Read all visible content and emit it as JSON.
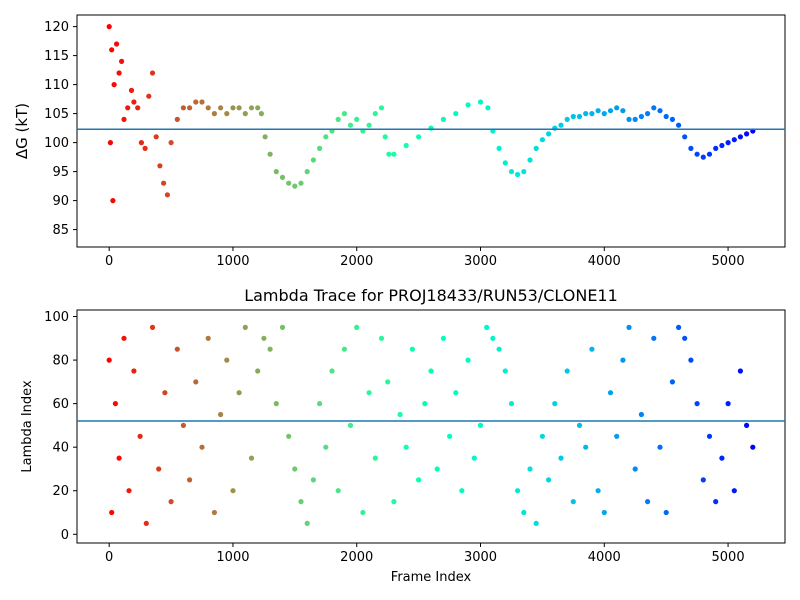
{
  "figure": {
    "title": "Lambda Trace for PROJ18433/RUN53/CLONE11"
  },
  "chart_data": [
    {
      "type": "scatter",
      "title": "",
      "xlabel": "",
      "ylabel": "ΔG (kT)",
      "xlim": [
        -260,
        5460
      ],
      "ylim": [
        82,
        122
      ],
      "xticks": [
        0,
        1000,
        2000,
        3000,
        4000,
        5000
      ],
      "yticks": [
        85,
        90,
        95,
        100,
        105,
        110,
        115,
        120
      ],
      "color_map": "rainbow (by frame index)",
      "hline": 102.3,
      "hline_color": "#1f77b4",
      "series": [
        {
          "x": [
            0,
            10,
            20,
            30,
            40,
            60,
            80,
            100,
            120,
            150,
            180,
            200,
            230,
            260,
            290,
            320,
            350,
            380,
            410,
            440,
            470,
            500,
            550,
            600,
            650,
            700,
            750,
            800,
            850,
            900,
            950,
            1000,
            1050,
            1100,
            1150,
            1200,
            1230,
            1260,
            1300,
            1350,
            1400,
            1450,
            1500,
            1550,
            1600,
            1650,
            1700,
            1750,
            1800,
            1850,
            1900,
            1950,
            2000,
            2050,
            2100,
            2150,
            2200,
            2230,
            2260,
            2300,
            2400,
            2500,
            2600,
            2700,
            2800,
            2900,
            3000,
            3060,
            3100,
            3150,
            3200,
            3250,
            3300,
            3350,
            3400,
            3450,
            3500,
            3550,
            3600,
            3650,
            3700,
            3750,
            3800,
            3850,
            3900,
            3950,
            4000,
            4050,
            4100,
            4150,
            4200,
            4250,
            4300,
            4350,
            4400,
            4450,
            4500,
            4550,
            4600,
            4650,
            4700,
            4750,
            4800,
            4850,
            4900,
            4950,
            5000,
            5050,
            5100,
            5150,
            5200
          ],
          "y": [
            120,
            100,
            116,
            90,
            110,
            117,
            112,
            114,
            104,
            106,
            109,
            107,
            106,
            100,
            99,
            108,
            112,
            101,
            96,
            93,
            91,
            100,
            104,
            106,
            106,
            107,
            107,
            106,
            105,
            106,
            105,
            106,
            106,
            105,
            106,
            106,
            105,
            101,
            98,
            95,
            94,
            93,
            92.5,
            93,
            95,
            97,
            99,
            101,
            102,
            104,
            105,
            103,
            104,
            102,
            103,
            105,
            106,
            101,
            98,
            98,
            99.5,
            101,
            102.5,
            104,
            105,
            106.5,
            107,
            106,
            102,
            99,
            96.5,
            95,
            94.5,
            95,
            97,
            99,
            100.5,
            101.5,
            102.5,
            103,
            104,
            104.5,
            104.5,
            105,
            105,
            105.5,
            105,
            105.5,
            106,
            105.5,
            104,
            104,
            104.5,
            105,
            106,
            105.5,
            104.5,
            104,
            103,
            101,
            99,
            98,
            97.5,
            98,
            99,
            99.5,
            100,
            100.5,
            101,
            101.5,
            102
          ]
        }
      ]
    },
    {
      "type": "scatter",
      "title": "Lambda Trace for PROJ18433/RUN53/CLONE11",
      "xlabel": "Frame Index",
      "ylabel": "Lambda Index",
      "xlim": [
        -260,
        5460
      ],
      "ylim": [
        -4,
        103
      ],
      "xticks": [
        0,
        1000,
        2000,
        3000,
        4000,
        5000
      ],
      "yticks": [
        0,
        20,
        40,
        60,
        80,
        100
      ],
      "color_map": "rainbow (by frame index)",
      "hline": 52,
      "hline_color": "#1f77b4",
      "series": [
        {
          "x": [
            0,
            20,
            50,
            80,
            120,
            160,
            200,
            250,
            300,
            350,
            400,
            450,
            500,
            550,
            600,
            650,
            700,
            750,
            800,
            850,
            900,
            950,
            1000,
            1050,
            1100,
            1150,
            1200,
            1250,
            1300,
            1350,
            1400,
            1450,
            1500,
            1550,
            1600,
            1650,
            1700,
            1750,
            1800,
            1850,
            1900,
            1950,
            2000,
            2050,
            2100,
            2150,
            2200,
            2250,
            2300,
            2350,
            2400,
            2450,
            2500,
            2550,
            2600,
            2650,
            2700,
            2750,
            2800,
            2850,
            2900,
            2950,
            3000,
            3050,
            3100,
            3150,
            3200,
            3250,
            3300,
            3350,
            3400,
            3450,
            3500,
            3550,
            3600,
            3650,
            3700,
            3750,
            3800,
            3850,
            3900,
            3950,
            4000,
            4050,
            4100,
            4150,
            4200,
            4250,
            4300,
            4350,
            4400,
            4450,
            4500,
            4550,
            4600,
            4650,
            4700,
            4750,
            4800,
            4850,
            4900,
            4950,
            5000,
            5050,
            5100,
            5150,
            5200
          ],
          "y": [
            80,
            10,
            60,
            35,
            90,
            20,
            75,
            45,
            5,
            95,
            30,
            65,
            15,
            85,
            50,
            25,
            70,
            40,
            90,
            10,
            55,
            80,
            20,
            65,
            95,
            35,
            75,
            90,
            85,
            60,
            95,
            45,
            30,
            15,
            5,
            25,
            60,
            40,
            75,
            20,
            85,
            50,
            95,
            10,
            65,
            35,
            90,
            70,
            15,
            55,
            40,
            85,
            25,
            60,
            75,
            30,
            90,
            45,
            65,
            20,
            80,
            35,
            50,
            95,
            90,
            85,
            75,
            60,
            20,
            10,
            30,
            5,
            45,
            25,
            60,
            35,
            75,
            15,
            50,
            40,
            85,
            20,
            10,
            65,
            45,
            80,
            95,
            30,
            55,
            15,
            90,
            40,
            10,
            70,
            95,
            90,
            80,
            60,
            25,
            45,
            15,
            35,
            60,
            20,
            75,
            50,
            40
          ]
        }
      ]
    }
  ]
}
